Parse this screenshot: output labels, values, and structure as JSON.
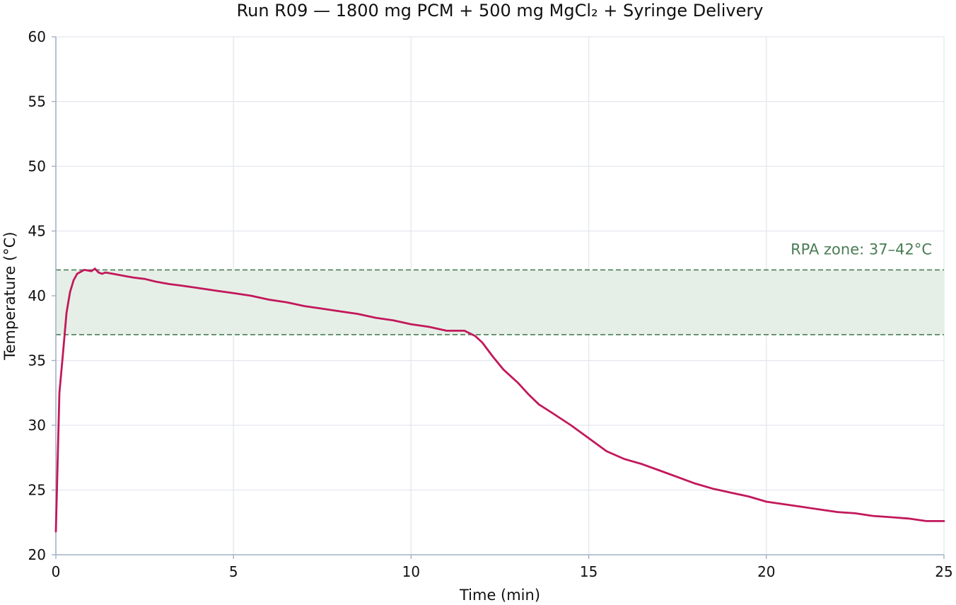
{
  "chart_data": {
    "type": "line",
    "title": "Run R09 — 1800 mg PCM + 500 mg MgCl₂ + Syringe Delivery",
    "xlabel": "Time (min)",
    "ylabel": "Temperature (°C)",
    "xlim": [
      0,
      25
    ],
    "ylim": [
      20,
      60
    ],
    "xticks": [
      0,
      5,
      10,
      15,
      20,
      25
    ],
    "yticks": [
      20,
      25,
      30,
      35,
      40,
      45,
      50,
      55,
      60
    ],
    "grid": true,
    "legend": "none",
    "band": {
      "label": "RPA zone: 37–42°C",
      "y_low": 37,
      "y_high": 42,
      "color": "#4a7d55",
      "fill": "#e6efe7"
    },
    "series": [
      {
        "color": "#c2185b",
        "x": [
          0.0,
          0.1,
          0.2,
          0.3,
          0.4,
          0.5,
          0.6,
          0.8,
          1.0,
          1.1,
          1.2,
          1.3,
          1.4,
          1.6,
          1.8,
          2.0,
          2.2,
          2.5,
          2.8,
          3.0,
          3.2,
          3.5,
          4.0,
          4.5,
          5.0,
          5.5,
          6.0,
          6.5,
          7.0,
          7.5,
          8.0,
          8.5,
          9.0,
          9.5,
          10.0,
          10.5,
          11.0,
          11.3,
          11.5,
          11.8,
          12.0,
          12.3,
          12.6,
          13.0,
          13.3,
          13.6,
          14.0,
          14.5,
          15.0,
          15.5,
          16.0,
          16.5,
          17.0,
          17.5,
          18.0,
          18.5,
          19.0,
          19.5,
          20.0,
          20.5,
          21.0,
          21.5,
          22.0,
          22.5,
          23.0,
          23.5,
          24.0,
          24.5,
          25.0
        ],
        "values": [
          21.8,
          32.5,
          35.5,
          38.7,
          40.3,
          41.2,
          41.7,
          42.0,
          41.9,
          42.1,
          41.8,
          41.7,
          41.8,
          41.7,
          41.6,
          41.5,
          41.4,
          41.3,
          41.1,
          41.0,
          40.9,
          40.8,
          40.6,
          40.4,
          40.2,
          40.0,
          39.7,
          39.5,
          39.2,
          39.0,
          38.8,
          38.6,
          38.3,
          38.1,
          37.8,
          37.6,
          37.3,
          37.3,
          37.3,
          36.9,
          36.4,
          35.3,
          34.3,
          33.3,
          32.4,
          31.6,
          30.9,
          30.0,
          29.0,
          28.0,
          27.4,
          27.0,
          26.5,
          26.0,
          25.5,
          25.1,
          24.8,
          24.5,
          24.1,
          23.9,
          23.7,
          23.5,
          23.3,
          23.2,
          23.0,
          22.9,
          22.8,
          22.6,
          22.6
        ]
      }
    ]
  }
}
